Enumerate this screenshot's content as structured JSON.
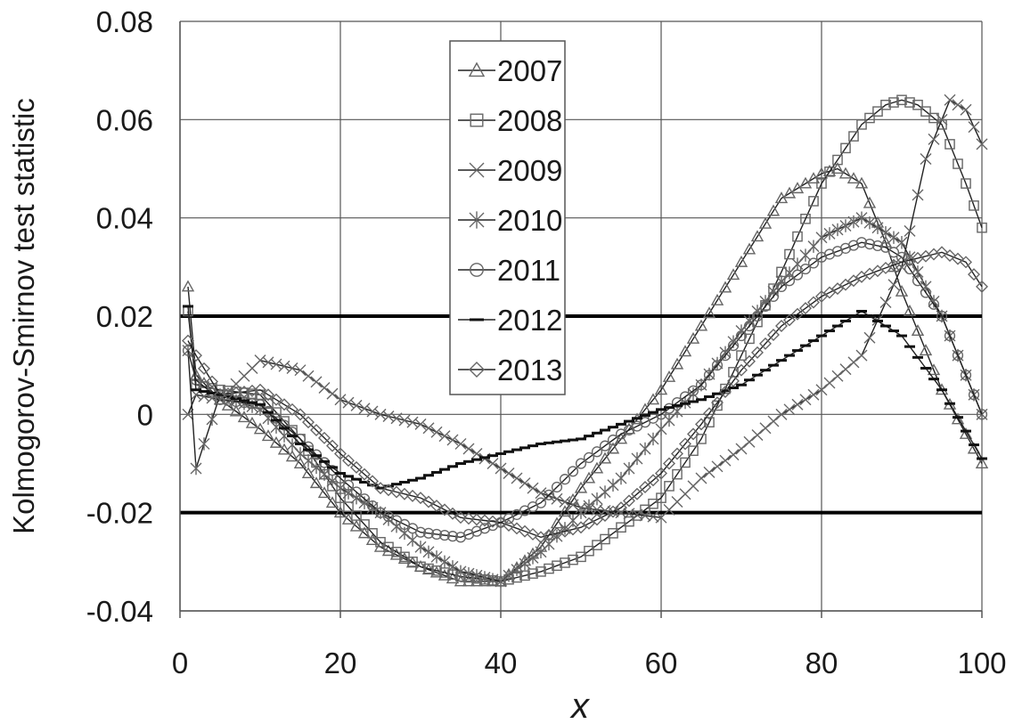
{
  "chart_data": {
    "type": "line",
    "xlabel": "x",
    "ylabel": "Kolmogorov-Smirnov test statistic",
    "xlim": [
      0,
      100
    ],
    "ylim": [
      -0.04,
      0.08
    ],
    "x_ticks": [
      "0",
      "20",
      "40",
      "60",
      "80",
      "100"
    ],
    "y_ticks": [
      "-0.04",
      "-0.02",
      "0",
      "0.02",
      "0.04",
      "0.06",
      "0.08"
    ],
    "grid": true,
    "legend_position": "top-center",
    "reference_lines": [
      0.02,
      -0.02
    ],
    "series": [
      {
        "name": "2007",
        "marker": "triangle",
        "x": [
          1,
          2,
          5,
          10,
          15,
          20,
          25,
          30,
          35,
          40,
          45,
          50,
          55,
          60,
          65,
          70,
          75,
          80,
          82,
          85,
          88,
          90,
          95,
          100
        ],
        "y": [
          0.026,
          0.008,
          0.003,
          -0.003,
          -0.01,
          -0.02,
          -0.027,
          -0.031,
          -0.034,
          -0.034,
          -0.027,
          -0.015,
          -0.005,
          0.005,
          0.018,
          0.031,
          0.044,
          0.049,
          0.05,
          0.047,
          0.035,
          0.025,
          0.005,
          -0.01
        ]
      },
      {
        "name": "2008",
        "marker": "square",
        "x": [
          1,
          2,
          5,
          10,
          15,
          20,
          25,
          30,
          35,
          40,
          45,
          50,
          55,
          60,
          65,
          70,
          75,
          80,
          85,
          88,
          90,
          92,
          95,
          98,
          100
        ],
        "y": [
          0.021,
          0.006,
          0.005,
          0.004,
          -0.005,
          -0.017,
          -0.026,
          -0.031,
          -0.033,
          -0.034,
          -0.032,
          -0.029,
          -0.023,
          -0.017,
          -0.005,
          0.012,
          0.029,
          0.047,
          0.059,
          0.063,
          0.064,
          0.063,
          0.059,
          0.047,
          0.038
        ]
      },
      {
        "name": "2009",
        "marker": "x",
        "x": [
          1,
          2,
          5,
          10,
          15,
          20,
          25,
          30,
          35,
          40,
          45,
          50,
          55,
          60,
          65,
          70,
          75,
          80,
          85,
          90,
          93,
          96,
          98,
          100
        ],
        "y": [
          0.0,
          0.004,
          0.003,
          0.011,
          0.009,
          0.003,
          0.0,
          -0.002,
          -0.006,
          -0.011,
          -0.016,
          -0.019,
          -0.02,
          -0.021,
          -0.013,
          -0.007,
          0.0,
          0.005,
          0.012,
          0.03,
          0.052,
          0.064,
          0.062,
          0.055
        ]
      },
      {
        "name": "2010",
        "marker": "star",
        "x": [
          1,
          2,
          5,
          10,
          15,
          20,
          25,
          30,
          35,
          40,
          45,
          50,
          55,
          60,
          65,
          70,
          75,
          80,
          85,
          90,
          95,
          100
        ],
        "y": [
          0.013,
          -0.011,
          0.004,
          0.001,
          -0.008,
          -0.015,
          -0.02,
          -0.027,
          -0.032,
          -0.034,
          -0.028,
          -0.02,
          -0.013,
          -0.003,
          0.006,
          0.017,
          0.027,
          0.036,
          0.04,
          0.035,
          0.02,
          0.0
        ]
      },
      {
        "name": "2011",
        "marker": "circle",
        "x": [
          1,
          2,
          5,
          10,
          15,
          20,
          25,
          30,
          35,
          40,
          45,
          50,
          55,
          60,
          65,
          70,
          75,
          80,
          85,
          88,
          90,
          95,
          100
        ],
        "y": [
          0.013,
          0.007,
          0.003,
          0.002,
          -0.005,
          -0.013,
          -0.02,
          -0.024,
          -0.025,
          -0.022,
          -0.018,
          -0.01,
          -0.004,
          0.0,
          0.006,
          0.016,
          0.026,
          0.032,
          0.035,
          0.034,
          0.032,
          0.02,
          0.0
        ]
      },
      {
        "name": "2012",
        "marker": "dash",
        "x": [
          1,
          2,
          5,
          10,
          15,
          20,
          25,
          30,
          35,
          40,
          45,
          50,
          55,
          60,
          65,
          70,
          75,
          80,
          85,
          90,
          95,
          100
        ],
        "y": [
          0.022,
          0.005,
          0.004,
          0.002,
          -0.006,
          -0.012,
          -0.015,
          -0.013,
          -0.01,
          -0.008,
          -0.006,
          -0.005,
          -0.002,
          0.001,
          0.003,
          0.006,
          0.011,
          0.016,
          0.021,
          0.016,
          0.005,
          -0.009
        ]
      },
      {
        "name": "2013",
        "marker": "diamond",
        "x": [
          1,
          2,
          5,
          10,
          15,
          20,
          25,
          30,
          35,
          40,
          45,
          50,
          55,
          60,
          65,
          70,
          75,
          80,
          85,
          90,
          95,
          98,
          100
        ],
        "y": [
          0.015,
          0.012,
          0.004,
          0.005,
          0.0,
          -0.008,
          -0.015,
          -0.017,
          -0.021,
          -0.022,
          -0.025,
          -0.023,
          -0.019,
          -0.012,
          -0.002,
          0.009,
          0.018,
          0.024,
          0.028,
          0.031,
          0.033,
          0.031,
          0.026
        ]
      }
    ]
  }
}
